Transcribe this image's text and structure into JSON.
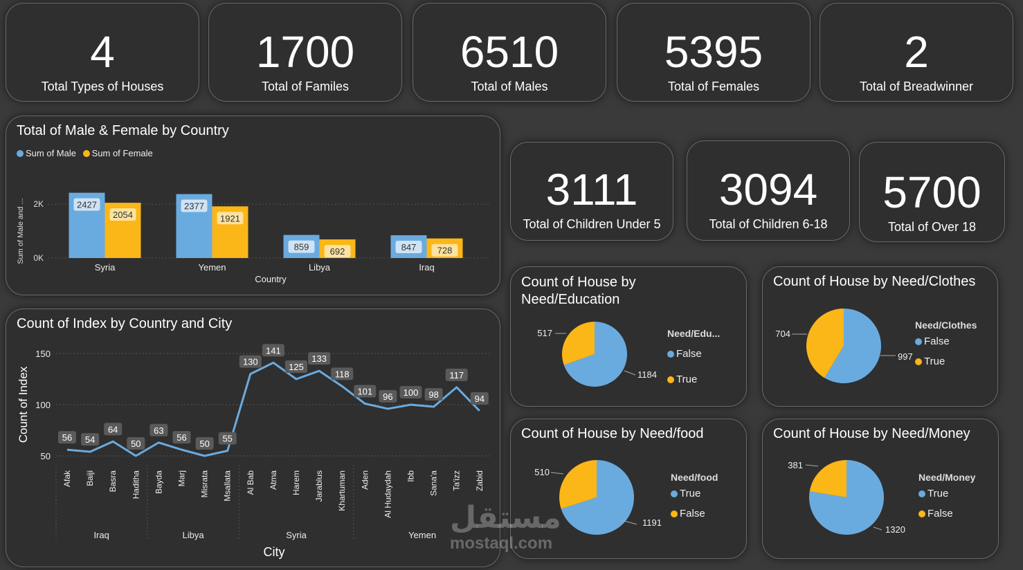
{
  "kpis_top": [
    {
      "value": "4",
      "label": "Total Types of Houses"
    },
    {
      "value": "1700",
      "label": "Total of Familes"
    },
    {
      "value": "6510",
      "label": "Total of Males"
    },
    {
      "value": "5395",
      "label": "Total of Females"
    },
    {
      "value": "2",
      "label": "Total of Breadwinner"
    }
  ],
  "kpis_mid": [
    {
      "value": "3111",
      "label": "Total of Children Under 5"
    },
    {
      "value": "3094",
      "label": "Total of Children 6-18"
    },
    {
      "value": "5700",
      "label": "Total of Over 18"
    }
  ],
  "colors": {
    "male": "#6aabdf",
    "female": "#fbb617",
    "line": "#6aabdf",
    "label_bg": "#5a5a5a"
  },
  "watermark": {
    "arabic": "مستقل",
    "latin": "mostaql.com"
  },
  "chart_data": [
    {
      "type": "bar",
      "title": "Total of Male & Female by Country",
      "legend": [
        "Sum of Male",
        "Sum of Female"
      ],
      "categories": [
        "Syria",
        "Yemen",
        "Libya",
        "Iraq"
      ],
      "series": [
        {
          "name": "Sum of Male",
          "values": [
            2427,
            2377,
            859,
            847
          ]
        },
        {
          "name": "Sum of Female",
          "values": [
            2054,
            1921,
            692,
            728
          ]
        }
      ],
      "xlabel": "Country",
      "ylabel": "Sum of Male and ...",
      "yticks": [
        "0K",
        "2K"
      ],
      "ylim": [
        0,
        2700
      ]
    },
    {
      "type": "line",
      "title": "Count of Index by Country and City",
      "xlabel": "City",
      "ylabel": "Count of Index",
      "yticks": [
        "50",
        "100",
        "150"
      ],
      "ylim": [
        45,
        155
      ],
      "groups": [
        {
          "name": "Iraq",
          "cities": [
            "Afak",
            "Baiji",
            "Basra",
            "Haditha"
          ]
        },
        {
          "name": "Libya",
          "cities": [
            "Bayda",
            "Marj",
            "Misrata",
            "Msallata"
          ]
        },
        {
          "name": "Syria",
          "cities": [
            "Al Bab",
            "Atma",
            "Harem",
            "Jarablus",
            "Khartuman"
          ]
        },
        {
          "name": "Yemen",
          "cities": [
            "Aden",
            "Al Hudaydah",
            "Ibb",
            "Sana'a",
            "Ta'izz",
            "Zabid"
          ]
        }
      ],
      "values": [
        56,
        54,
        64,
        50,
        63,
        56,
        50,
        55,
        130,
        141,
        125,
        133,
        118,
        101,
        96,
        100,
        98,
        117,
        94
      ]
    },
    {
      "type": "pie",
      "title": "Count of House by Need/Education",
      "legend_title": "Need/Edu...",
      "slices": [
        {
          "label": "False",
          "value": 1184,
          "color": "#6aabdf"
        },
        {
          "label": "True",
          "value": 517,
          "color": "#fbb617"
        }
      ]
    },
    {
      "type": "pie",
      "title": "Count of House by Need/Clothes",
      "legend_title": "Need/Clothes",
      "slices": [
        {
          "label": "False",
          "value": 997,
          "color": "#6aabdf"
        },
        {
          "label": "True",
          "value": 704,
          "color": "#fbb617"
        }
      ]
    },
    {
      "type": "pie",
      "title": "Count of House by Need/food",
      "legend_title": "Need/food",
      "slices": [
        {
          "label": "True",
          "value": 1191,
          "color": "#6aabdf"
        },
        {
          "label": "False",
          "value": 510,
          "color": "#fbb617"
        }
      ]
    },
    {
      "type": "pie",
      "title": "Count of House by Need/Money",
      "legend_title": "Need/Money",
      "slices": [
        {
          "label": "True",
          "value": 1320,
          "color": "#6aabdf"
        },
        {
          "label": "False",
          "value": 381,
          "color": "#fbb617"
        }
      ]
    }
  ]
}
